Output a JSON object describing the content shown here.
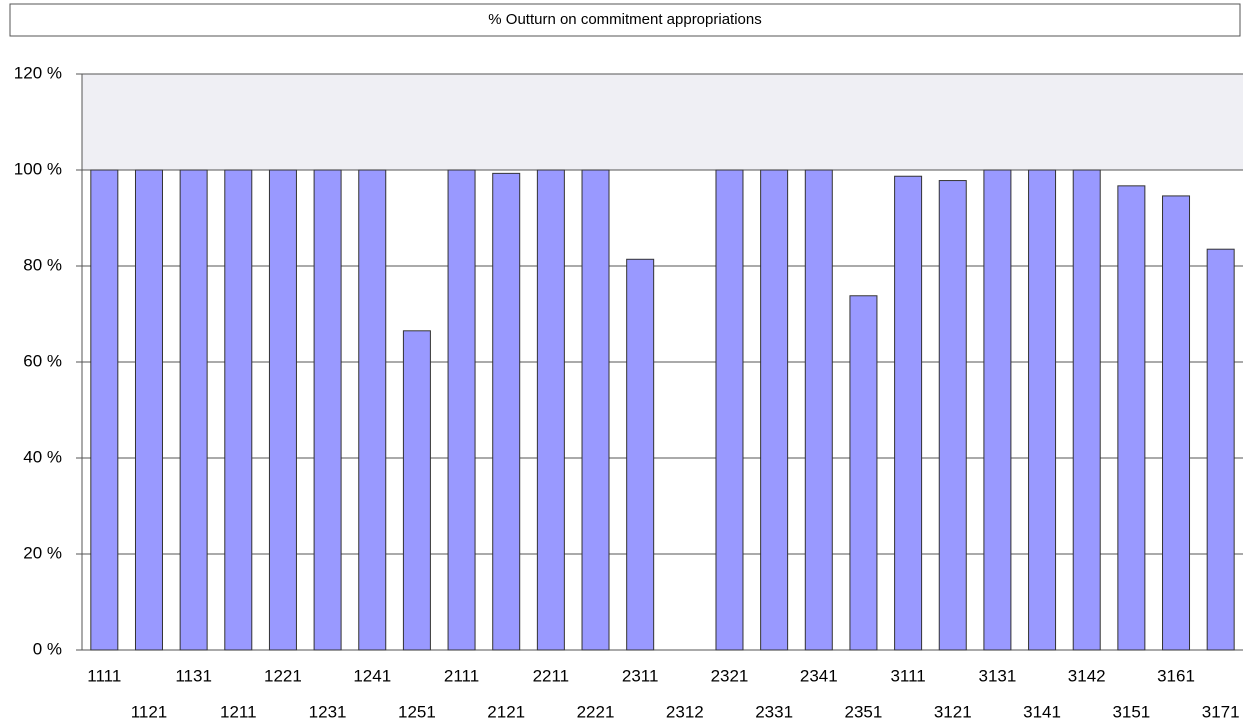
{
  "chart_data": {
    "type": "bar",
    "title": "% Outturn on commitment appropriations",
    "categories": [
      "1111",
      "1121",
      "1131",
      "1211",
      "1221",
      "1231",
      "1241",
      "1251",
      "2111",
      "2121",
      "2211",
      "2221",
      "2311",
      "2312",
      "2321",
      "2331",
      "2341",
      "2351",
      "3111",
      "3121",
      "3131",
      "3141",
      "3142",
      "3151",
      "3161",
      "3171"
    ],
    "values": [
      100,
      100,
      100,
      100,
      100,
      100,
      100,
      66.5,
      100,
      99.3,
      100,
      100,
      81.4,
      0,
      100,
      100,
      100,
      73.8,
      98.7,
      97.8,
      100,
      100,
      100,
      96.7,
      94.6,
      83.5
    ],
    "color": "#9999ff",
    "ylim": [
      0,
      120
    ],
    "yticks": [
      {
        "value": 0,
        "label": "0 %"
      },
      {
        "value": 20,
        "label": "20 %"
      },
      {
        "value": 40,
        "label": "40 %"
      },
      {
        "value": 60,
        "label": "60 %"
      },
      {
        "value": 80,
        "label": "80 %"
      },
      {
        "value": 100,
        "label": "100 %"
      },
      {
        "value": 120,
        "label": "120 %"
      }
    ],
    "grid": true
  }
}
